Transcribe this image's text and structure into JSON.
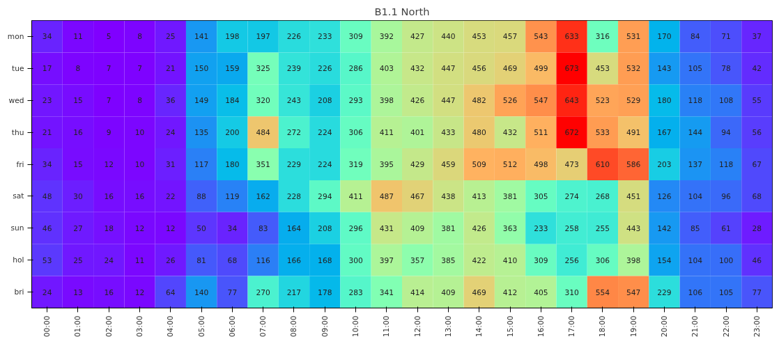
{
  "chart_data": {
    "type": "heatmap",
    "title": "B1.1 North",
    "categories": [
      "00:00",
      "01:00",
      "02:00",
      "03:00",
      "04:00",
      "05:00",
      "06:00",
      "07:00",
      "08:00",
      "09:00",
      "10:00",
      "11:00",
      "12:00",
      "13:00",
      "14:00",
      "15:00",
      "16:00",
      "17:00",
      "18:00",
      "19:00",
      "20:00",
      "21:00",
      "22:00",
      "23:00"
    ],
    "y_categories": [
      "mon",
      "tue",
      "wed",
      "thu",
      "fri",
      "sat",
      "sun",
      "hol",
      "bri"
    ],
    "cells": [
      [
        34,
        11,
        5,
        8,
        25,
        141,
        198,
        197,
        226,
        233,
        309,
        392,
        427,
        440,
        453,
        457,
        543,
        633,
        316,
        531,
        170,
        84,
        71,
        37
      ],
      [
        17,
        8,
        7,
        7,
        21,
        150,
        159,
        325,
        239,
        226,
        286,
        403,
        432,
        447,
        456,
        469,
        499,
        673,
        453,
        532,
        143,
        105,
        78,
        42
      ],
      [
        23,
        15,
        7,
        8,
        36,
        149,
        184,
        320,
        243,
        208,
        293,
        398,
        426,
        447,
        482,
        526,
        547,
        643,
        523,
        529,
        180,
        118,
        108,
        55
      ],
      [
        21,
        16,
        9,
        10,
        24,
        135,
        200,
        484,
        272,
        224,
        306,
        411,
        401,
        433,
        480,
        432,
        511,
        672,
        533,
        491,
        167,
        144,
        94,
        56
      ],
      [
        34,
        15,
        12,
        10,
        31,
        117,
        180,
        351,
        229,
        224,
        319,
        395,
        429,
        459,
        509,
        512,
        498,
        473,
        610,
        586,
        203,
        137,
        118,
        67
      ],
      [
        48,
        30,
        16,
        16,
        22,
        88,
        119,
        162,
        228,
        294,
        411,
        487,
        467,
        438,
        413,
        381,
        305,
        274,
        268,
        451,
        126,
        104,
        96,
        68
      ],
      [
        46,
        27,
        18,
        12,
        12,
        50,
        34,
        83,
        164,
        208,
        296,
        431,
        409,
        381,
        426,
        363,
        233,
        258,
        255,
        443,
        142,
        85,
        61,
        28
      ],
      [
        53,
        25,
        24,
        11,
        26,
        81,
        68,
        116,
        166,
        168,
        300,
        397,
        357,
        385,
        422,
        410,
        309,
        256,
        306,
        398,
        154,
        104,
        100,
        46
      ],
      [
        24,
        13,
        16,
        12,
        64,
        140,
        77,
        270,
        217,
        178,
        283,
        341,
        414,
        409,
        469,
        412,
        405,
        310,
        554,
        547,
        229,
        106,
        105,
        77
      ]
    ],
    "data_labels": true
  }
}
